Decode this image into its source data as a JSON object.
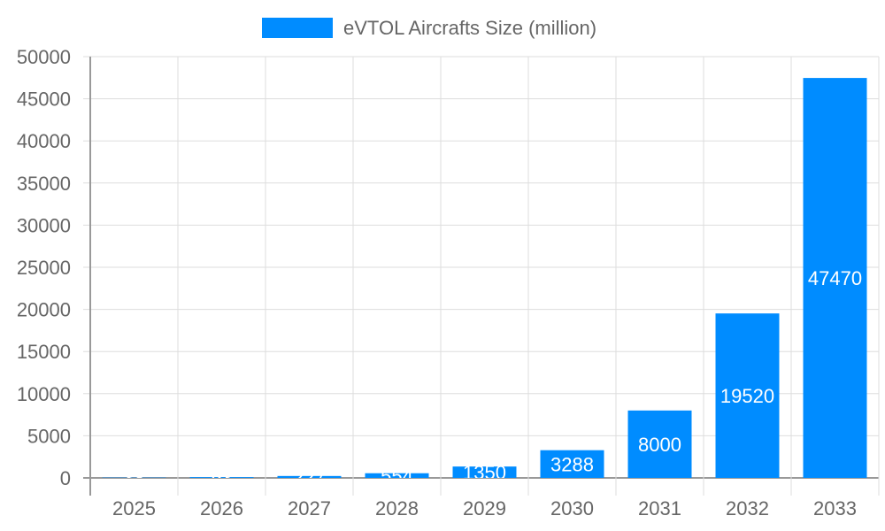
{
  "chart_data": {
    "type": "bar",
    "title": "",
    "xlabel": "",
    "ylabel": "",
    "categories": [
      "2025",
      "2026",
      "2027",
      "2028",
      "2029",
      "2030",
      "2031",
      "2032",
      "2033"
    ],
    "series": [
      {
        "name": "eVTOL Aircrafts Size (million)",
        "values": [
          38,
          93,
          227,
          554,
          1350,
          3288,
          8000,
          19520,
          47470
        ],
        "color": "#008cff"
      }
    ],
    "ylim": [
      0,
      50000
    ],
    "yticks": [
      0,
      5000,
      10000,
      15000,
      20000,
      25000,
      30000,
      35000,
      40000,
      45000,
      50000
    ],
    "grid": true,
    "legend": "top-center",
    "data_labels": true
  }
}
